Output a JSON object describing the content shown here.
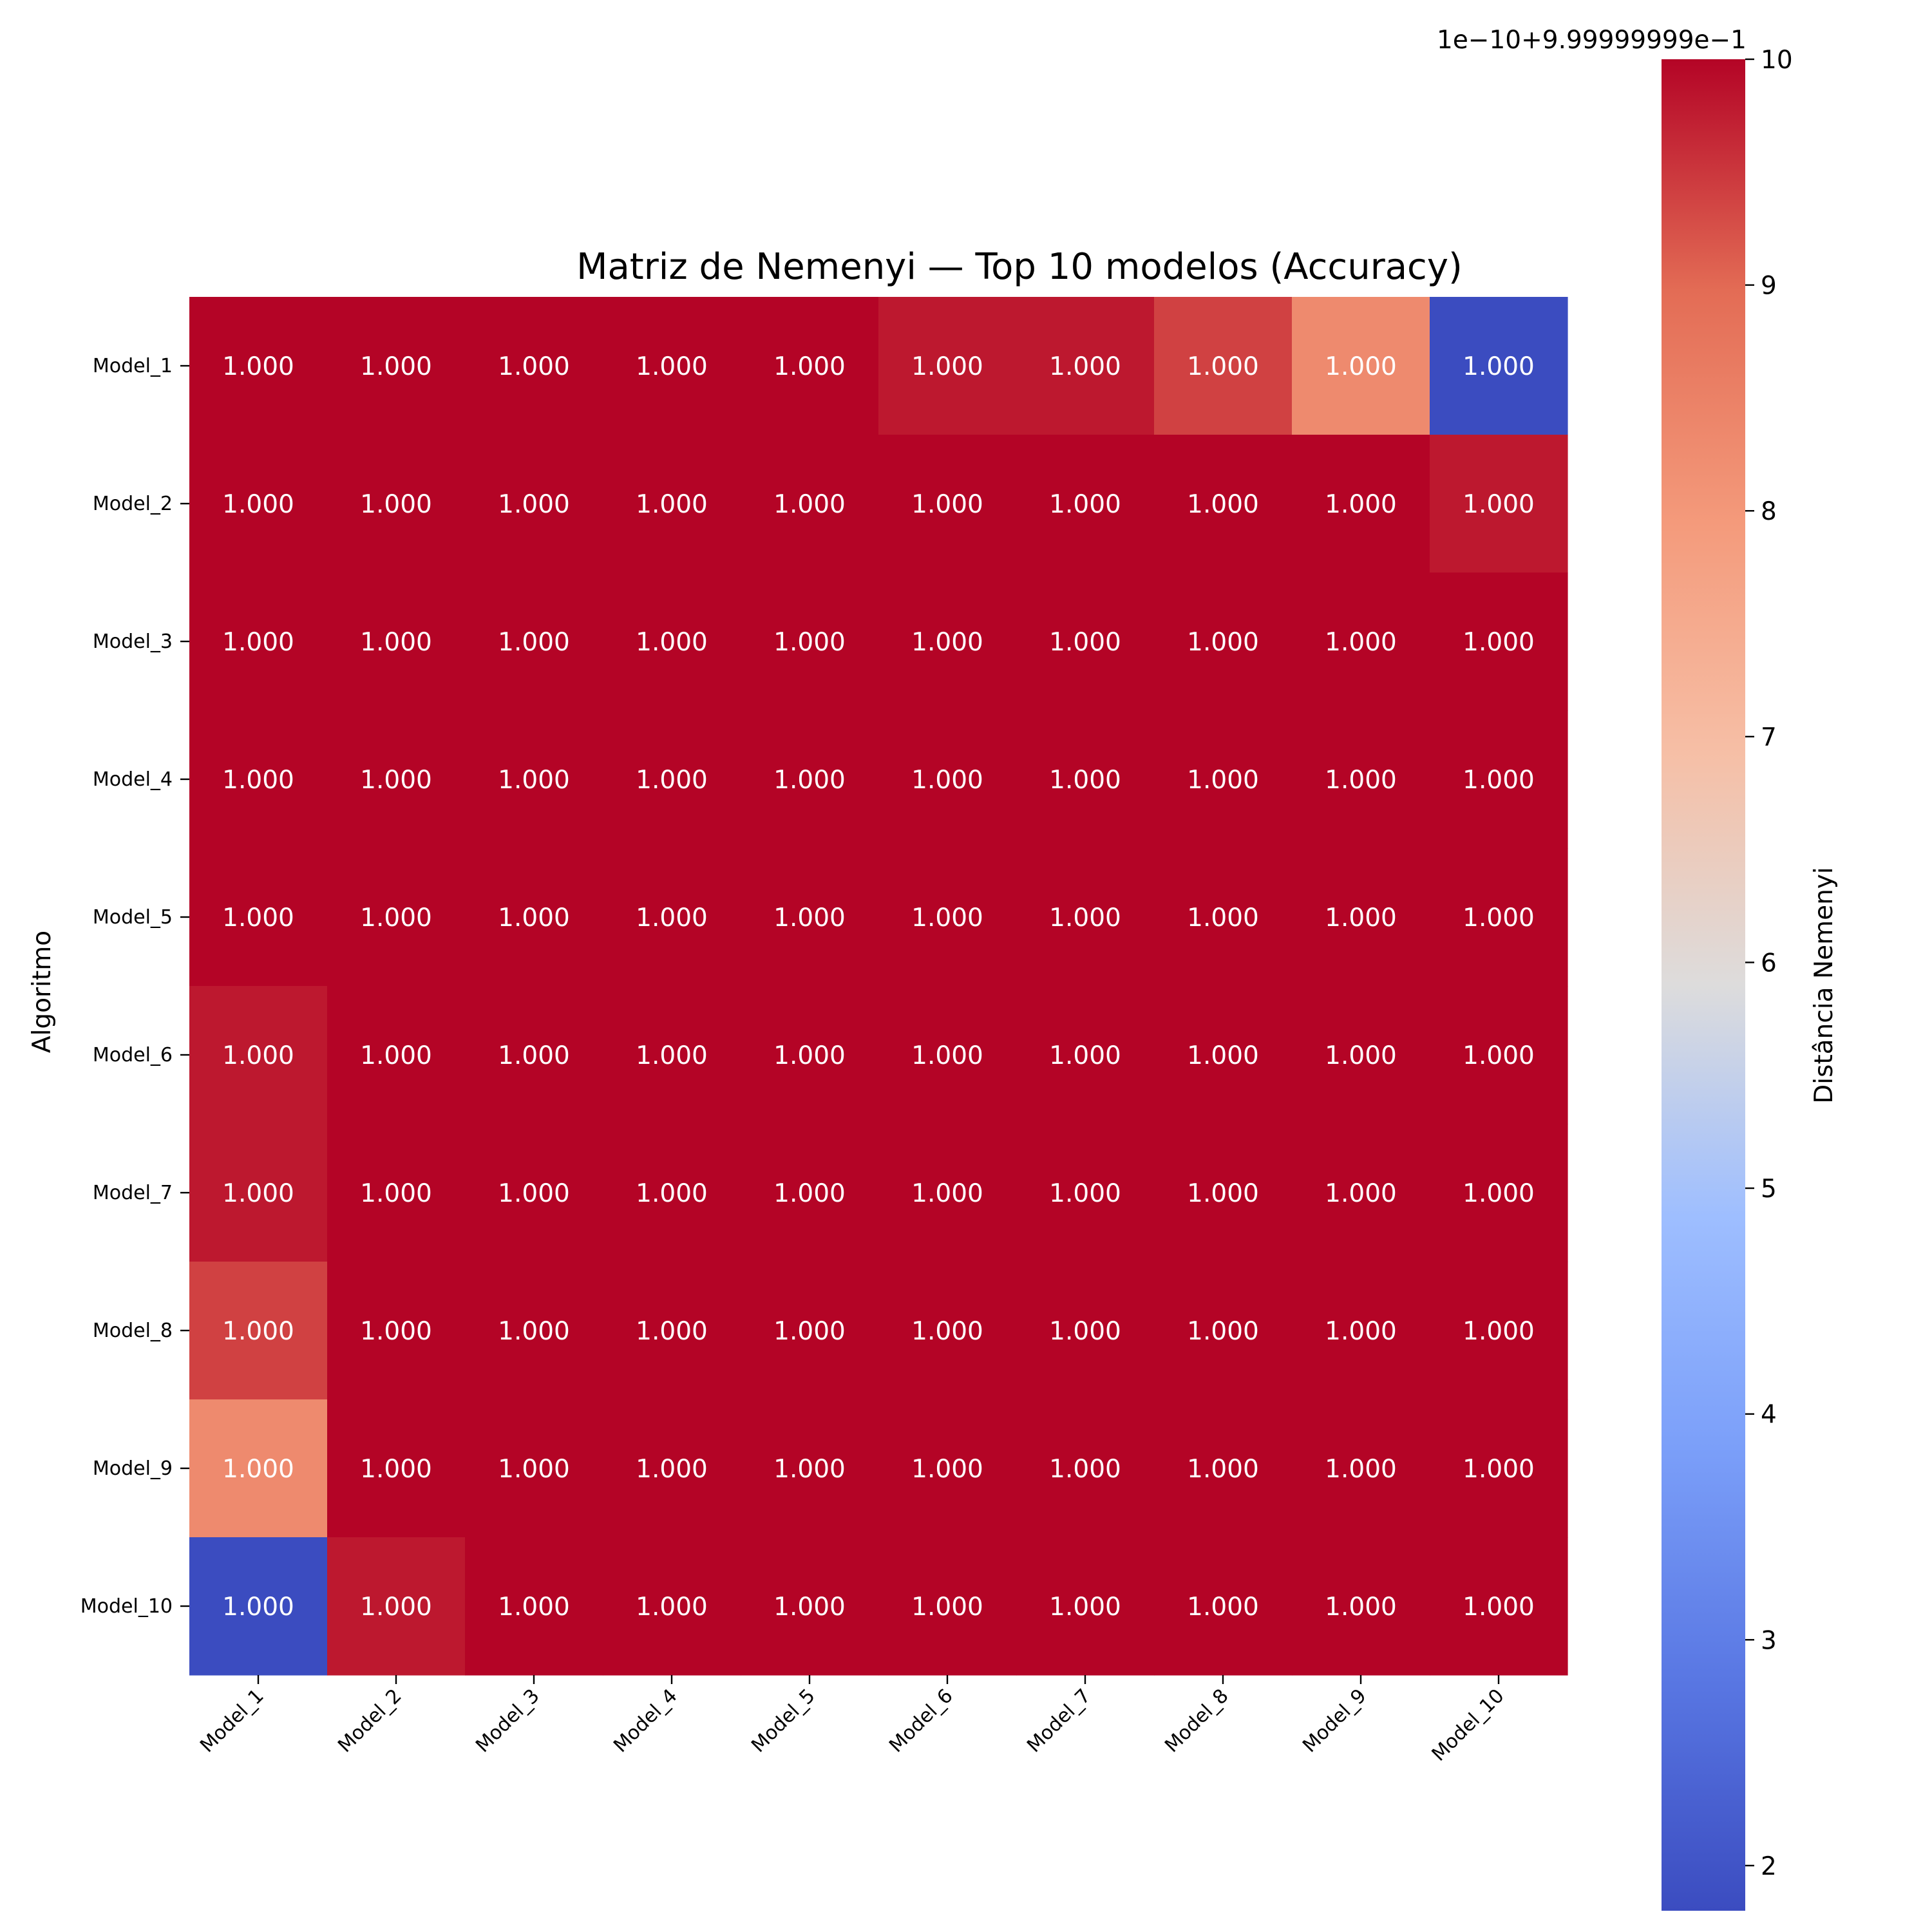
{
  "chart_data": {
    "type": "heatmap",
    "title": "Matriz de Nemenyi — Top 10 modelos (Accuracy)",
    "xlabel": "",
    "ylabel": "Algoritmo",
    "x_categories": [
      "Model_1",
      "Model_2",
      "Model_3",
      "Model_4",
      "Model_5",
      "Model_6",
      "Model_7",
      "Model_8",
      "Model_9",
      "Model_10"
    ],
    "y_categories": [
      "Model_1",
      "Model_2",
      "Model_3",
      "Model_4",
      "Model_5",
      "Model_6",
      "Model_7",
      "Model_8",
      "Model_9",
      "Model_10"
    ],
    "cell_label": "1.000",
    "values": [
      [
        10,
        10,
        10,
        10,
        10,
        9.8,
        9.8,
        9.4,
        8.3,
        1.8
      ],
      [
        10,
        10,
        10,
        10,
        10,
        10,
        10,
        10,
        10,
        9.8
      ],
      [
        10,
        10,
        10,
        10,
        10,
        10,
        10,
        10,
        10,
        10
      ],
      [
        10,
        10,
        10,
        10,
        10,
        10,
        10,
        10,
        10,
        10
      ],
      [
        10,
        10,
        10,
        10,
        10,
        10,
        10,
        10,
        10,
        10
      ],
      [
        9.8,
        10,
        10,
        10,
        10,
        10,
        10,
        10,
        10,
        10
      ],
      [
        9.8,
        10,
        10,
        10,
        10,
        10,
        10,
        10,
        10,
        10
      ],
      [
        9.4,
        10,
        10,
        10,
        10,
        10,
        10,
        10,
        10,
        10
      ],
      [
        8.3,
        10,
        10,
        10,
        10,
        10,
        10,
        10,
        10,
        10
      ],
      [
        1.8,
        9.8,
        10,
        10,
        10,
        10,
        10,
        10,
        10,
        10
      ]
    ],
    "colormap": "coolwarm",
    "colorbar": {
      "label": "Distância Nemenyi",
      "offset_text": "1e−10+9.99999999e−1",
      "range": [
        1.8,
        10
      ],
      "ticks": [
        2,
        3,
        4,
        5,
        6,
        7,
        8,
        9,
        10
      ]
    },
    "grid": false,
    "legend": "none"
  }
}
